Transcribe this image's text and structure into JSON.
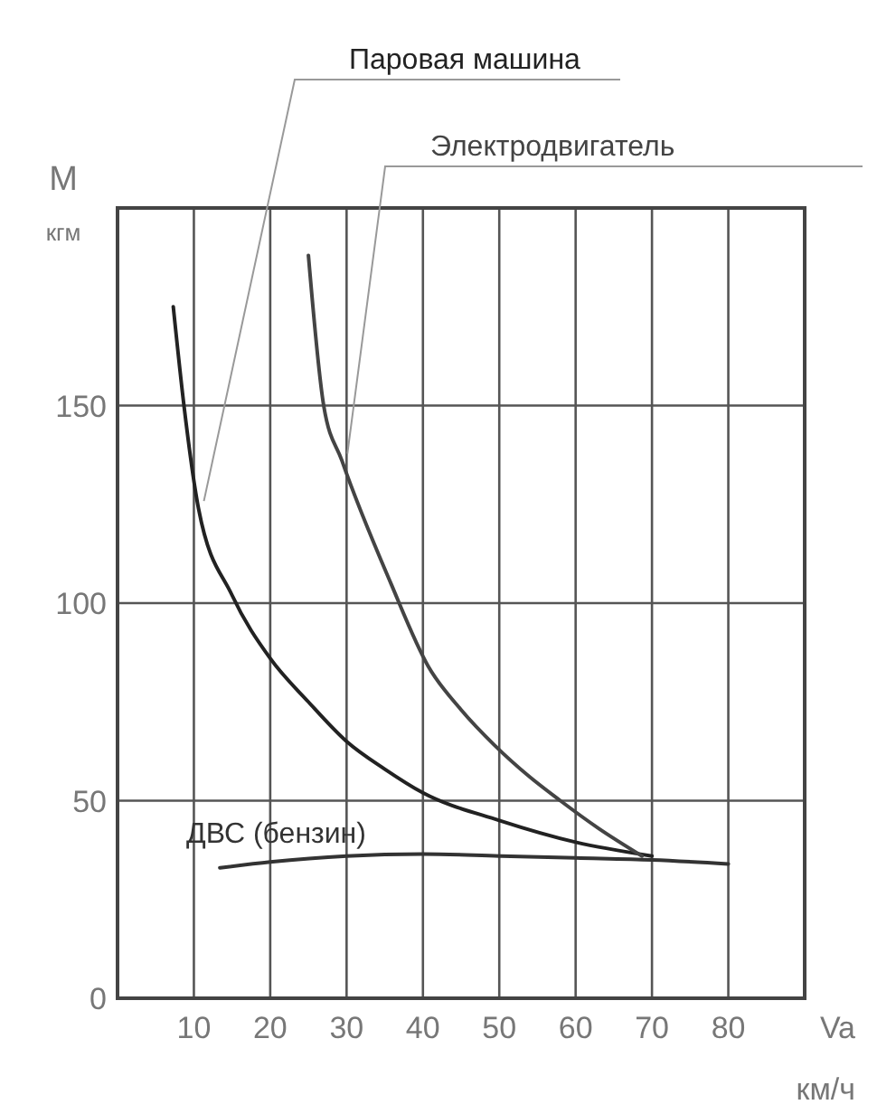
{
  "chart_data": {
    "type": "line",
    "xlabel": "Va\nкм/ч",
    "ylabel": "M\nкгм",
    "xlim": [
      0,
      90
    ],
    "ylim": [
      0,
      200
    ],
    "xticks": [
      10,
      20,
      30,
      40,
      50,
      60,
      70,
      80
    ],
    "yticks": [
      0,
      50,
      100,
      150
    ],
    "grid": true,
    "line_style": "solid",
    "series": [
      {
        "name": "Паровая машина",
        "color": "#222222",
        "x": [
          7.3,
          8.7,
          10.6,
          15,
          20,
          25,
          30,
          35,
          40,
          50,
          60,
          70
        ],
        "values": [
          175,
          150,
          124,
          102,
          86,
          75,
          65,
          58,
          52,
          45,
          39.5,
          36
        ]
      },
      {
        "name": "Электродвигатель",
        "color": "#444444",
        "x": [
          25,
          27,
          29.4,
          35.8,
          40.7,
          45,
          49.4,
          54,
          58,
          63,
          68.7
        ],
        "values": [
          188,
          150,
          136,
          105,
          84,
          73,
          64,
          56,
          50,
          43,
          36
        ]
      },
      {
        "name": "ДВС (бензин)",
        "color": "#333333",
        "x": [
          13.4,
          20,
          30,
          40,
          50,
          60,
          70,
          80
        ],
        "values": [
          33,
          34.5,
          36,
          36.5,
          36,
          35.5,
          35,
          34
        ]
      }
    ]
  }
}
